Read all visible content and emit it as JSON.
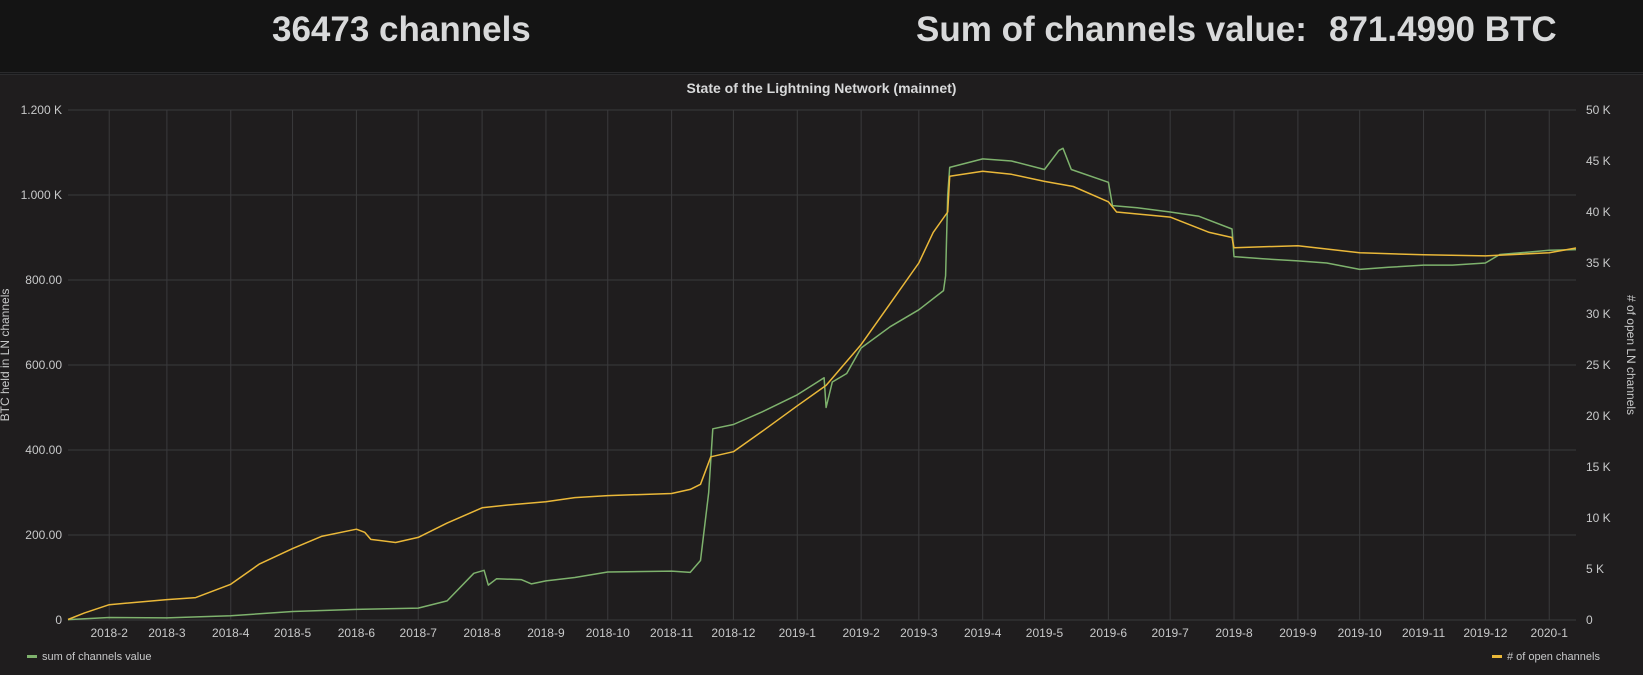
{
  "header": {
    "channels_stat": "36473 channels",
    "sum_label": "Sum of channels value:",
    "sum_value": "871.4990 BTC"
  },
  "colors": {
    "series_value": "#7eb26d",
    "series_channels": "#eab839"
  },
  "chart_data": {
    "type": "line",
    "title": "State of the Lightning Network (mainnet)",
    "ylabel": "BTC held in LN channels",
    "y2label": "# of open LN channels",
    "y_ticks": [
      "0",
      "200.00",
      "400.00",
      "600.00",
      "800.00",
      "1.000 K",
      "1.200 K"
    ],
    "y_tick_values": [
      0,
      200,
      400,
      600,
      800,
      1000,
      1200
    ],
    "y2_ticks": [
      "0",
      "5 K",
      "10 K",
      "15 K",
      "20 K",
      "25 K",
      "30 K",
      "35 K",
      "40 K",
      "45 K",
      "50 K"
    ],
    "y2_tick_values": [
      0,
      5000,
      10000,
      15000,
      20000,
      25000,
      30000,
      35000,
      40000,
      45000,
      50000
    ],
    "ylim": [
      0,
      1200
    ],
    "y2lim": [
      0,
      50000
    ],
    "x_ticks": [
      "2018-2",
      "2018-3",
      "2018-4",
      "2018-5",
      "2018-6",
      "2018-7",
      "2018-8",
      "2018-9",
      "2018-10",
      "2018-11",
      "2018-12",
      "2019-1",
      "2019-2",
      "2019-3",
      "2019-4",
      "2019-5",
      "2019-6",
      "2019-7",
      "2019-8",
      "2019-9",
      "2019-10",
      "2019-11",
      "2019-12",
      "2020-1"
    ],
    "x_tick_dates": [
      "2018-02-01",
      "2018-03-01",
      "2018-04-01",
      "2018-05-01",
      "2018-06-01",
      "2018-07-01",
      "2018-08-01",
      "2018-09-01",
      "2018-10-01",
      "2018-11-01",
      "2018-12-01",
      "2019-01-01",
      "2019-02-01",
      "2019-03-01",
      "2019-04-01",
      "2019-05-01",
      "2019-06-01",
      "2019-07-01",
      "2019-08-01",
      "2019-09-01",
      "2019-10-01",
      "2019-11-01",
      "2019-12-01",
      "2020-01-01"
    ],
    "xlim": [
      "2018-01-12",
      "2020-01-14"
    ],
    "grid": true,
    "legend": "bottom",
    "series": [
      {
        "name": "sum of channels value",
        "axis": "left",
        "points": [
          [
            "2018-01-12",
            1
          ],
          [
            "2018-02-01",
            6
          ],
          [
            "2018-03-01",
            5
          ],
          [
            "2018-04-01",
            10
          ],
          [
            "2018-05-01",
            20
          ],
          [
            "2018-06-01",
            25
          ],
          [
            "2018-07-01",
            28
          ],
          [
            "2018-07-15",
            45
          ],
          [
            "2018-07-28",
            110
          ],
          [
            "2018-08-02",
            117
          ],
          [
            "2018-08-04",
            82
          ],
          [
            "2018-08-08",
            97
          ],
          [
            "2018-08-20",
            95
          ],
          [
            "2018-08-25",
            85
          ],
          [
            "2018-09-01",
            92
          ],
          [
            "2018-09-15",
            100
          ],
          [
            "2018-10-01",
            113
          ],
          [
            "2018-11-01",
            115
          ],
          [
            "2018-11-10",
            112
          ],
          [
            "2018-11-15",
            140
          ],
          [
            "2018-11-19",
            300
          ],
          [
            "2018-11-21",
            450
          ],
          [
            "2018-12-01",
            460
          ],
          [
            "2018-12-15",
            490
          ],
          [
            "2019-01-01",
            530
          ],
          [
            "2019-01-14",
            570
          ],
          [
            "2019-01-15",
            500
          ],
          [
            "2019-01-18",
            560
          ],
          [
            "2019-01-25",
            580
          ],
          [
            "2019-02-01",
            640
          ],
          [
            "2019-02-15",
            690
          ],
          [
            "2019-03-01",
            730
          ],
          [
            "2019-03-13",
            775
          ],
          [
            "2019-03-14",
            810
          ],
          [
            "2019-03-15",
            1000
          ],
          [
            "2019-03-16",
            1065
          ],
          [
            "2019-04-01",
            1085
          ],
          [
            "2019-04-15",
            1080
          ],
          [
            "2019-05-01",
            1060
          ],
          [
            "2019-05-08",
            1105
          ],
          [
            "2019-05-10",
            1110
          ],
          [
            "2019-05-14",
            1060
          ],
          [
            "2019-06-01",
            1030
          ],
          [
            "2019-06-03",
            975
          ],
          [
            "2019-06-15",
            970
          ],
          [
            "2019-07-01",
            960
          ],
          [
            "2019-07-15",
            950
          ],
          [
            "2019-07-31",
            920
          ],
          [
            "2019-08-01",
            855
          ],
          [
            "2019-08-15",
            850
          ],
          [
            "2019-09-01",
            845
          ],
          [
            "2019-09-15",
            840
          ],
          [
            "2019-10-01",
            825
          ],
          [
            "2019-10-15",
            830
          ],
          [
            "2019-11-01",
            835
          ],
          [
            "2019-11-15",
            835
          ],
          [
            "2019-12-01",
            840
          ],
          [
            "2019-12-08",
            860
          ],
          [
            "2020-01-01",
            870
          ],
          [
            "2020-01-14",
            871.499
          ]
        ]
      },
      {
        "name": "# of open channels",
        "axis": "right",
        "points": [
          [
            "2018-01-12",
            50
          ],
          [
            "2018-01-20",
            700
          ],
          [
            "2018-02-01",
            1500
          ],
          [
            "2018-03-01",
            2000
          ],
          [
            "2018-03-15",
            2200
          ],
          [
            "2018-04-01",
            3500
          ],
          [
            "2018-04-15",
            5500
          ],
          [
            "2018-05-01",
            7000
          ],
          [
            "2018-05-15",
            8200
          ],
          [
            "2018-06-01",
            8900
          ],
          [
            "2018-06-05",
            8600
          ],
          [
            "2018-06-08",
            7900
          ],
          [
            "2018-06-20",
            7600
          ],
          [
            "2018-07-01",
            8100
          ],
          [
            "2018-07-15",
            9500
          ],
          [
            "2018-08-01",
            11000
          ],
          [
            "2018-08-15",
            11300
          ],
          [
            "2018-09-01",
            11600
          ],
          [
            "2018-09-15",
            12000
          ],
          [
            "2018-10-01",
            12200
          ],
          [
            "2018-11-01",
            12400
          ],
          [
            "2018-11-10",
            12800
          ],
          [
            "2018-11-15",
            13300
          ],
          [
            "2018-11-20",
            16000
          ],
          [
            "2018-12-01",
            16500
          ],
          [
            "2018-12-15",
            18500
          ],
          [
            "2019-01-01",
            21000
          ],
          [
            "2019-01-15",
            23000
          ],
          [
            "2019-02-01",
            27000
          ],
          [
            "2019-02-15",
            31000
          ],
          [
            "2019-03-01",
            35000
          ],
          [
            "2019-03-08",
            38000
          ],
          [
            "2019-03-15",
            40000
          ],
          [
            "2019-03-16",
            43500
          ],
          [
            "2019-04-01",
            44000
          ],
          [
            "2019-04-15",
            43700
          ],
          [
            "2019-05-01",
            43000
          ],
          [
            "2019-05-15",
            42500
          ],
          [
            "2019-06-01",
            41000
          ],
          [
            "2019-06-05",
            40000
          ],
          [
            "2019-07-01",
            39500
          ],
          [
            "2019-07-20",
            38000
          ],
          [
            "2019-07-31",
            37500
          ],
          [
            "2019-08-01",
            36500
          ],
          [
            "2019-09-01",
            36700
          ],
          [
            "2019-10-01",
            36000
          ],
          [
            "2019-11-01",
            35800
          ],
          [
            "2019-12-01",
            35700
          ],
          [
            "2020-01-01",
            36000
          ],
          [
            "2020-01-14",
            36473
          ]
        ]
      }
    ]
  }
}
